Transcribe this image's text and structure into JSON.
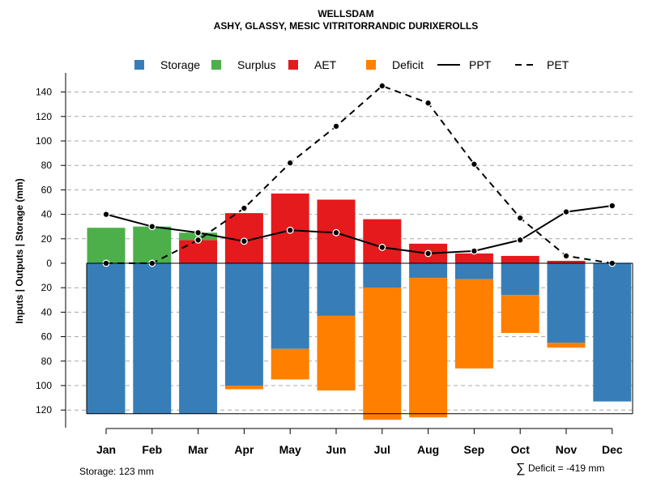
{
  "chart_data": {
    "type": "bar",
    "title": "WELLSDAM",
    "subtitle": "ASHY, GLASSY, MESIC VITRITORRANDIC DURIXEROLLS",
    "ylabel": "Inputs | Outputs | Storage    (mm)",
    "ylim": [
      -123,
      150
    ],
    "yticks": [
      140,
      120,
      100,
      80,
      60,
      40,
      20,
      0,
      -20,
      -40,
      -60,
      -80,
      -100,
      -120
    ],
    "ytick_labels": [
      "140",
      "120",
      "100",
      "80",
      "60",
      "40",
      "20",
      "0",
      "20",
      "40",
      "60",
      "80",
      "100",
      "120"
    ],
    "categories": [
      "Jan",
      "Feb",
      "Mar",
      "Apr",
      "May",
      "Jun",
      "Jul",
      "Aug",
      "Sep",
      "Oct",
      "Nov",
      "Dec"
    ],
    "legend": [
      "Storage",
      "Surplus",
      "AET",
      "Deficit",
      "PPT",
      "PET"
    ],
    "colors": {
      "storage": "#377EB8",
      "surplus": "#4DAF4A",
      "aet": "#E41A1C",
      "deficit": "#FF7F00"
    },
    "series": [
      {
        "name": "Storage",
        "values": [
          123,
          123,
          123,
          100,
          70,
          43,
          20,
          12,
          13,
          26,
          65,
          113
        ]
      },
      {
        "name": "Surplus",
        "values": [
          29,
          30,
          6,
          0,
          0,
          0,
          0,
          0,
          0,
          0,
          0,
          0
        ]
      },
      {
        "name": "AET",
        "values": [
          0,
          0,
          19,
          41,
          57,
          52,
          36,
          16,
          8,
          6,
          2,
          0
        ]
      },
      {
        "name": "Deficit",
        "values": [
          0,
          0,
          0,
          3,
          25,
          61,
          108,
          114,
          73,
          31,
          4,
          0
        ]
      },
      {
        "name": "PPT",
        "values": [
          40,
          30,
          25,
          18,
          27,
          25,
          13,
          8,
          10,
          19,
          42,
          47
        ]
      },
      {
        "name": "PET",
        "values": [
          0,
          0,
          19,
          45,
          82,
          112,
          145,
          131,
          81,
          37,
          6,
          0
        ]
      }
    ],
    "footer_left": "Storage: 123 mm",
    "footer_right_symbol": "∑",
    "footer_right": "Deficit = -419 mm"
  }
}
